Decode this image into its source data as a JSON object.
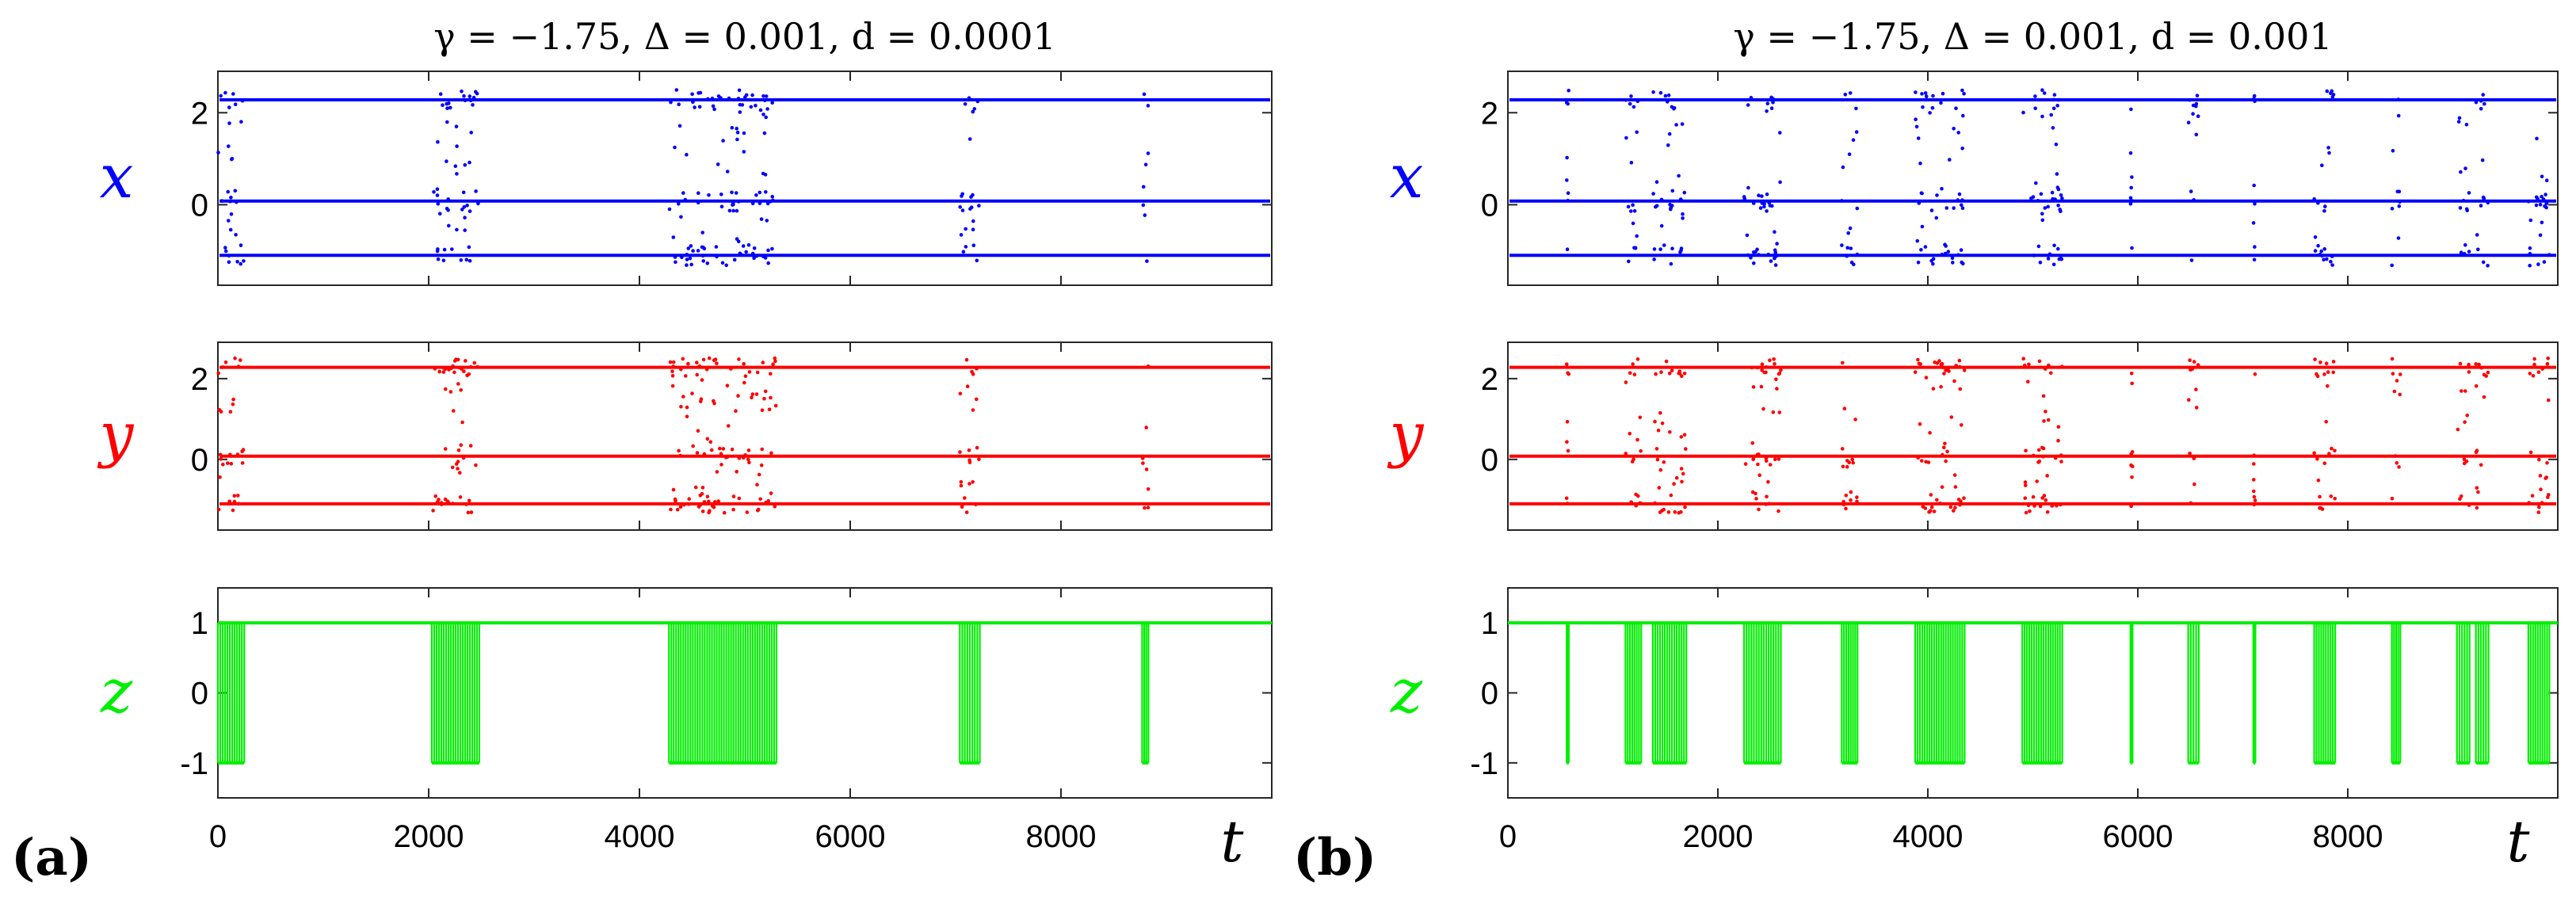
{
  "colors": {
    "x": "#0000ff",
    "y": "#ff0000",
    "z": "#00ee00"
  },
  "chart_data": [
    {
      "type": "scatter",
      "panel": "(a)",
      "title": "γ = −1.75, Δ = 0.001, d = 0.0001",
      "xlabel": "t",
      "xlim": [
        0,
        10000
      ],
      "xticks": [
        0,
        2000,
        4000,
        6000,
        8000
      ],
      "series": [
        {
          "name": "x",
          "ylim": [
            -1.75,
            2.9
          ],
          "yticks": [
            2,
            0
          ],
          "levels": [
            2.28,
            0.08,
            -1.1
          ],
          "bursts": [
            [
              0,
              250
            ],
            [
              2030,
              2480
            ],
            [
              4280,
              5300
            ],
            [
              7040,
              7230
            ],
            [
              8770,
              8830
            ]
          ]
        },
        {
          "name": "y",
          "ylim": [
            -1.75,
            2.9
          ],
          "yticks": [
            2,
            0
          ],
          "levels": [
            2.28,
            0.08,
            -1.1
          ],
          "bursts": [
            [
              0,
              250
            ],
            [
              2030,
              2480
            ],
            [
              4280,
              5300
            ],
            [
              7040,
              7230
            ],
            [
              8770,
              8830
            ]
          ]
        },
        {
          "name": "z",
          "ylim": [
            -1.5,
            1.5
          ],
          "yticks": [
            1,
            0,
            -1
          ],
          "levels": [
            1,
            -1
          ],
          "bursts": [
            [
              0,
              250
            ],
            [
              2030,
              2480
            ],
            [
              4280,
              5300
            ],
            [
              7040,
              7230
            ],
            [
              8770,
              8830
            ]
          ]
        }
      ]
    },
    {
      "type": "scatter",
      "panel": "(b)",
      "title": "γ = −1.75, Δ = 0.001, d = 0.001",
      "xlabel": "t",
      "xlim": [
        0,
        10000
      ],
      "xticks": [
        0,
        2000,
        4000,
        6000,
        8000
      ],
      "series": [
        {
          "name": "x",
          "ylim": [
            -1.75,
            2.9
          ],
          "yticks": [
            2,
            0
          ],
          "levels": [
            2.28,
            0.08,
            -1.1
          ],
          "bursts": [
            [
              560,
              580
            ],
            [
              1120,
              1270
            ],
            [
              1380,
              1700
            ],
            [
              2250,
              2600
            ],
            [
              3180,
              3330
            ],
            [
              3880,
              4350
            ],
            [
              4900,
              5280
            ],
            [
              5930,
              5950
            ],
            [
              6480,
              6580
            ],
            [
              7100,
              7120
            ],
            [
              7680,
              7880
            ],
            [
              8420,
              8500
            ],
            [
              9040,
              9160
            ],
            [
              9220,
              9340
            ],
            [
              9720,
              9920
            ]
          ]
        },
        {
          "name": "y",
          "ylim": [
            -1.75,
            2.9
          ],
          "yticks": [
            2,
            0
          ],
          "levels": [
            2.28,
            0.08,
            -1.1
          ],
          "bursts": [
            [
              560,
              580
            ],
            [
              1120,
              1270
            ],
            [
              1380,
              1700
            ],
            [
              2250,
              2600
            ],
            [
              3180,
              3330
            ],
            [
              3880,
              4350
            ],
            [
              4900,
              5280
            ],
            [
              5930,
              5950
            ],
            [
              6480,
              6580
            ],
            [
              7100,
              7120
            ],
            [
              7680,
              7880
            ],
            [
              8420,
              8500
            ],
            [
              9040,
              9160
            ],
            [
              9220,
              9340
            ],
            [
              9720,
              9920
            ]
          ]
        },
        {
          "name": "z",
          "ylim": [
            -1.5,
            1.5
          ],
          "yticks": [
            1,
            0,
            -1
          ],
          "levels": [
            1,
            -1
          ],
          "bursts": [
            [
              560,
              580
            ],
            [
              1120,
              1270
            ],
            [
              1380,
              1700
            ],
            [
              2250,
              2600
            ],
            [
              3180,
              3330
            ],
            [
              3880,
              4350
            ],
            [
              4900,
              5280
            ],
            [
              5930,
              5950
            ],
            [
              6480,
              6580
            ],
            [
              7100,
              7120
            ],
            [
              7680,
              7880
            ],
            [
              8420,
              8500
            ],
            [
              9040,
              9160
            ],
            [
              9220,
              9340
            ],
            [
              9720,
              9920
            ]
          ]
        }
      ]
    }
  ]
}
